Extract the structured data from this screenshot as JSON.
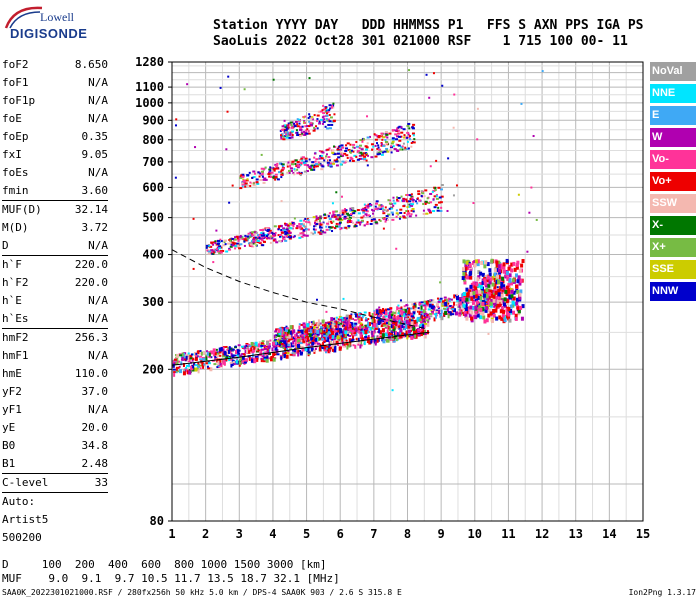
{
  "logo": {
    "line1": "Lowell",
    "line2": "DIGISONDE"
  },
  "header": {
    "line1": "Station YYYY DAY   DDD HHMMSS P1   FFS S AXN PPS IGA PS",
    "line2": "SaoLuis 2022 Oct28 301 021000 RSF    1 715 100 00- 11"
  },
  "params": [
    {
      "name": "foF2",
      "value": "8.650"
    },
    {
      "name": "foF1",
      "value": "N/A"
    },
    {
      "name": "foF1p",
      "value": "N/A"
    },
    {
      "name": "foE",
      "value": "N/A"
    },
    {
      "name": "foEp",
      "value": "0.35"
    },
    {
      "name": "fxI",
      "value": "9.05"
    },
    {
      "name": "foEs",
      "value": "N/A"
    },
    {
      "name": "fmin",
      "value": "3.60"
    },
    {
      "name": "MUF(D)",
      "value": "32.14",
      "sep": true
    },
    {
      "name": "M(D)",
      "value": "3.72"
    },
    {
      "name": "D",
      "value": "N/A"
    },
    {
      "name": "h`F",
      "value": "220.0",
      "sep": true
    },
    {
      "name": "h`F2",
      "value": "220.0"
    },
    {
      "name": "h`E",
      "value": "N/A"
    },
    {
      "name": "h`Es",
      "value": "N/A"
    },
    {
      "name": "hmF2",
      "value": "256.3",
      "sep": true
    },
    {
      "name": "hmF1",
      "value": "N/A"
    },
    {
      "name": "hmE",
      "value": "110.0"
    },
    {
      "name": "yF2",
      "value": "37.0"
    },
    {
      "name": "yF1",
      "value": "N/A"
    },
    {
      "name": "yE",
      "value": "20.0"
    },
    {
      "name": "B0",
      "value": "34.8"
    },
    {
      "name": "B1",
      "value": "2.48"
    },
    {
      "name": "C-level",
      "value": "33",
      "sep": true
    }
  ],
  "auto": {
    "line1": "Auto:",
    "line2": "Artist5",
    "line3": "500200"
  },
  "legend": [
    {
      "label": "NoVal",
      "color": "#a0a0a0"
    },
    {
      "label": "NNE",
      "color": "#00e5ff"
    },
    {
      "label": "E",
      "color": "#3fa9f5"
    },
    {
      "label": "W",
      "color": "#b000b0"
    },
    {
      "label": "Vo-",
      "color": "#ff3399"
    },
    {
      "label": "Vo+",
      "color": "#ee0000"
    },
    {
      "label": "SSW",
      "color": "#f4b8b0"
    },
    {
      "label": "X-",
      "color": "#007700"
    },
    {
      "label": "X+",
      "color": "#77bb44"
    },
    {
      "label": "SSE",
      "color": "#cccc00"
    },
    {
      "label": "NNW",
      "color": "#0000cc"
    }
  ],
  "footer": {
    "line1": "D     100  200  400  600  800 1000 1500 3000 [km]",
    "line2": "MUF    9.0  9.1  9.7 10.5 11.7 13.5 18.7 32.1 [MHz]",
    "bottom": "SAA0K_2022301021000.RSF / 280fx256h 50 kHz 5.0 km / DPS-4 SAA0K 903 / 2.6 S 315.8 E",
    "version": "Ion2Png 1.3.17"
  },
  "chart_data": {
    "type": "scatter",
    "xlim": [
      1,
      15
    ],
    "ylim": [
      80,
      1280
    ],
    "x_ticks": [
      "1",
      "2",
      "3",
      "4",
      "5",
      "6",
      "7",
      "8",
      "9",
      "10",
      "11",
      "12",
      "13",
      "14",
      "15"
    ],
    "y_ticks": [
      "80",
      "200",
      "300",
      "400",
      "500",
      "600",
      "700",
      "800",
      "900",
      "1000",
      "1100",
      "1280"
    ],
    "y_tick_values": [
      80,
      200,
      300,
      400,
      500,
      600,
      700,
      800,
      900,
      1000,
      1100,
      1280
    ],
    "grid": true,
    "y_scale": "log",
    "traces": [
      {
        "name": "o-trace-1",
        "x": [
          1.0,
          8.6
        ],
        "y": [
          205,
          260
        ],
        "color": "#0000cc"
      },
      {
        "name": "x-trace-1",
        "x": [
          4.0,
          10.8
        ],
        "y": [
          240,
          310
        ],
        "color": "#ee0000"
      },
      {
        "name": "o-trace-2",
        "x": [
          2.0,
          9.0
        ],
        "y": [
          412,
          560
        ],
        "color": "#0000cc"
      },
      {
        "name": "o-trace-3",
        "x": [
          3.0,
          8.2
        ],
        "y": [
          620,
          820
        ],
        "color": "#b000b0"
      },
      {
        "name": "o-trace-4",
        "x": [
          4.2,
          5.8
        ],
        "y": [
          830,
          920
        ],
        "color": "#b000b0"
      }
    ],
    "profile_curve": {
      "x": [
        1.0,
        2.0,
        3.0,
        4.0,
        5.0,
        6.0,
        7.0,
        8.0,
        8.6
      ],
      "y": [
        412,
        370,
        340,
        318,
        300,
        288,
        274,
        262,
        255
      ]
    },
    "lower_curve": {
      "x": [
        1.0,
        3.0,
        5.0,
        7.0,
        8.6,
        8.65
      ],
      "y": [
        205,
        215,
        228,
        240,
        250,
        250
      ]
    }
  }
}
